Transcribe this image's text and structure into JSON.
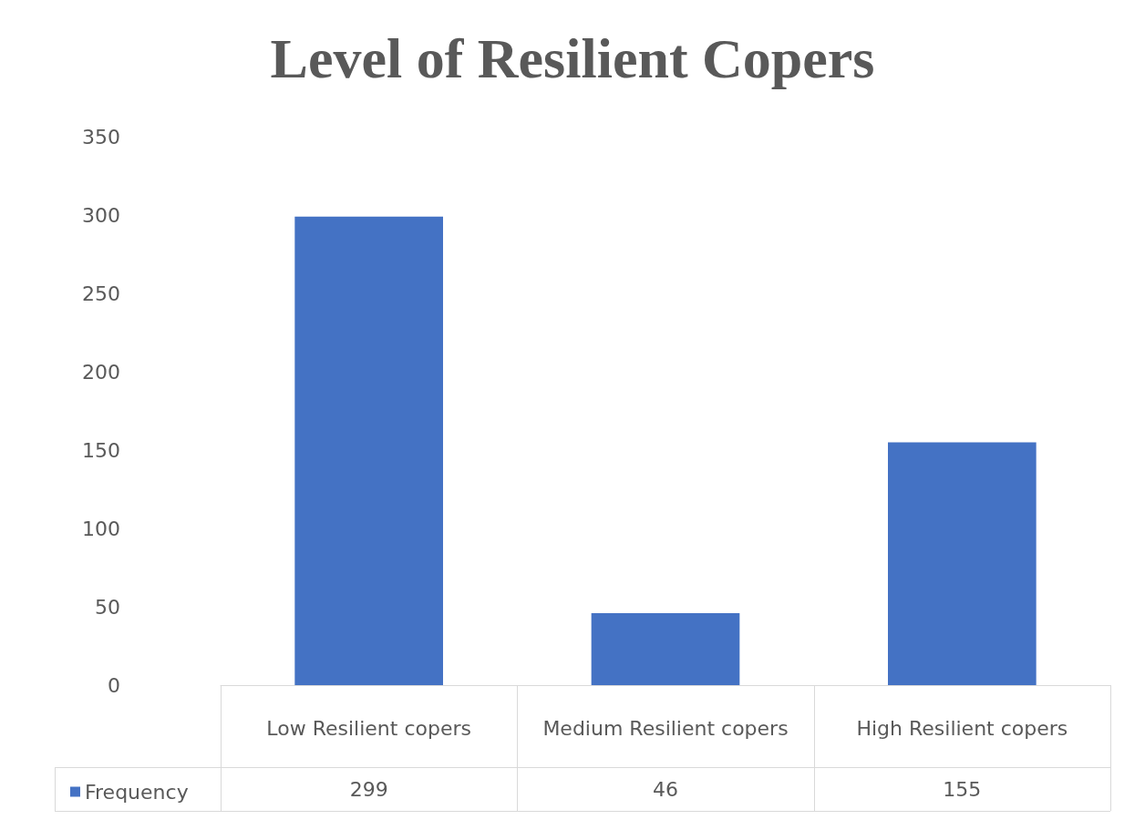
{
  "chart_data": {
    "type": "bar",
    "title": "Level of Resilient Copers",
    "categories": [
      "Low Resilient copers",
      "Medium Resilient copers",
      "High Resilient copers"
    ],
    "series": [
      {
        "name": "Frequency",
        "color": "#4472c4",
        "values": [
          299,
          46,
          155
        ]
      }
    ],
    "ylim": [
      0,
      350
    ],
    "yticks": [
      0,
      50,
      100,
      150,
      200,
      250,
      300,
      350
    ],
    "grid": false,
    "data_labels": true,
    "legend": "bottom left"
  }
}
